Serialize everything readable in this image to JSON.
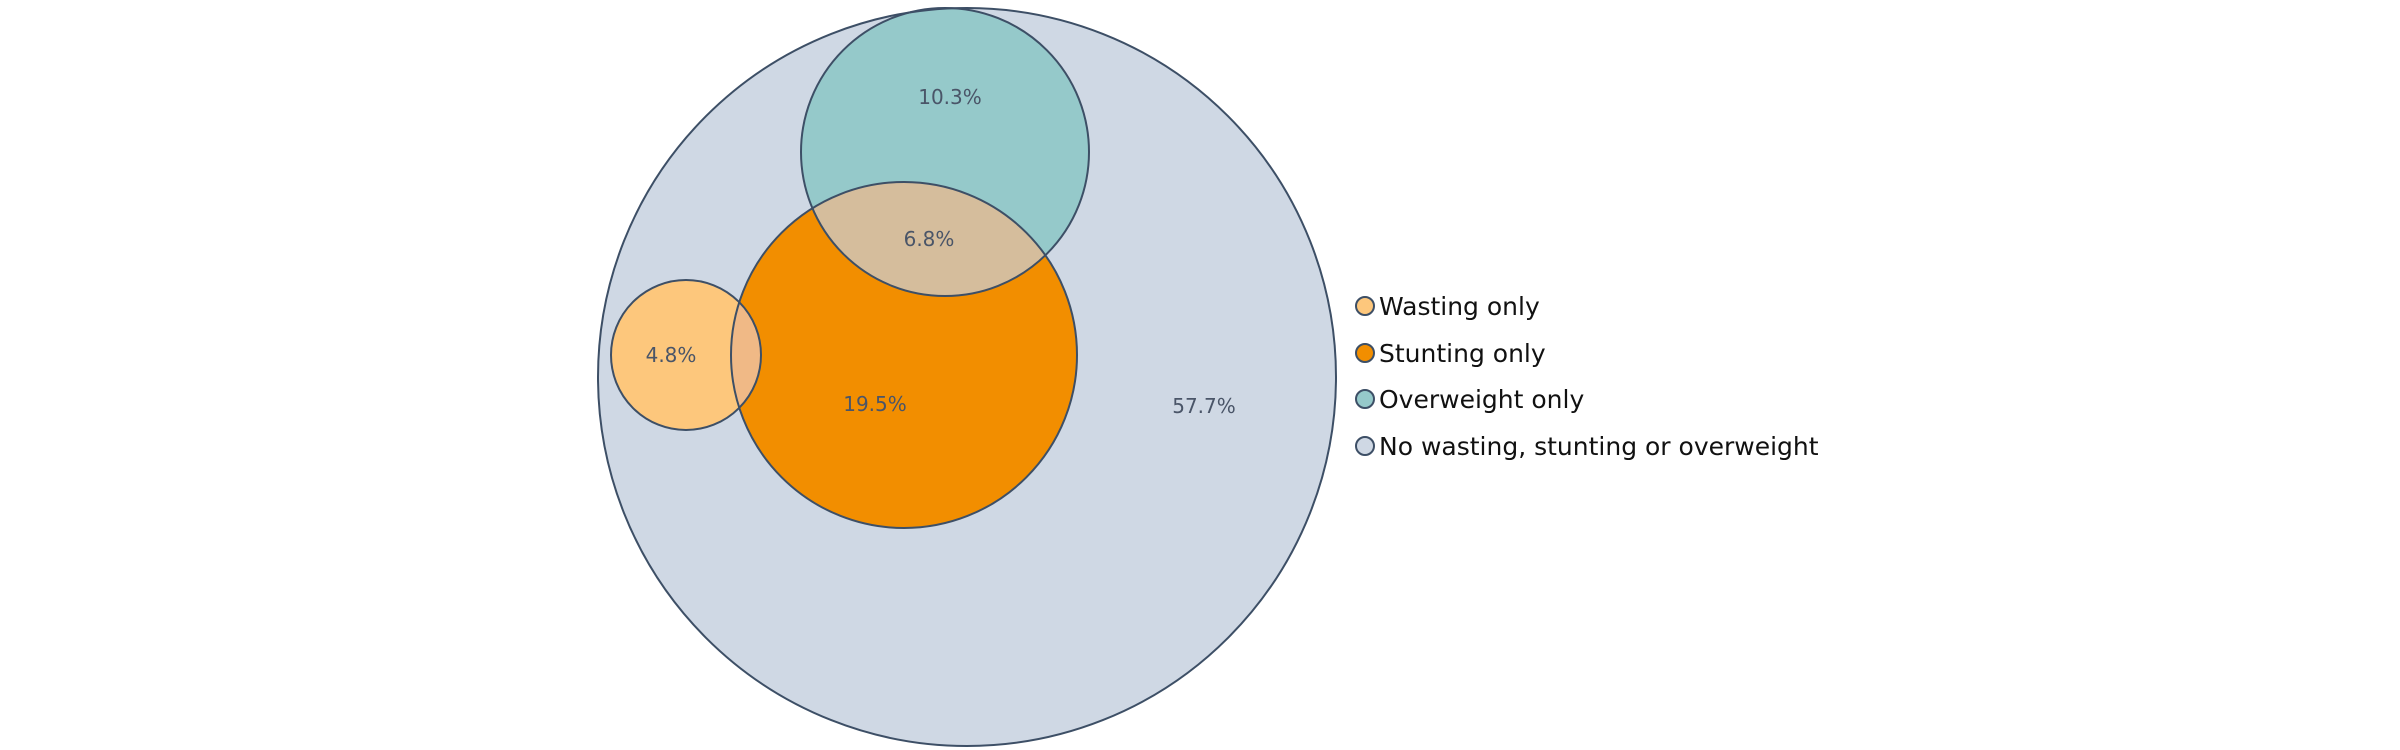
{
  "chart_data": {
    "type": "venn",
    "title": "",
    "sets": [
      {
        "name": "No wasting, stunting or overweight",
        "color": "#cfd8e4"
      },
      {
        "name": "Overweight only",
        "color": "#95c9ca"
      },
      {
        "name": "Stunting only",
        "color": "#f28e00"
      },
      {
        "name": "Wasting only",
        "color": "#fdc77c"
      }
    ],
    "overlap_colors": {
      "stunting_overweight": "#d5bd9c",
      "wasting_stunting": "#f0b986"
    },
    "regions": [
      {
        "key": "none",
        "label": "57.7%",
        "value": 57.7
      },
      {
        "key": "overweight",
        "label": "10.3%",
        "value": 10.3
      },
      {
        "key": "stunting_overweight",
        "label": "6.8%",
        "value": 6.8
      },
      {
        "key": "stunting",
        "label": "19.5%",
        "value": 19.5
      },
      {
        "key": "wasting",
        "label": "4.8%",
        "value": 4.8
      }
    ],
    "legend": {
      "position": "right",
      "items": [
        {
          "label": "Wasting only",
          "color": "#fdc77c"
        },
        {
          "label": "Stunting only",
          "color": "#f28e00"
        },
        {
          "label": "Overweight only",
          "color": "#95c9ca"
        },
        {
          "label": "No wasting, stunting or overweight",
          "color": "#cfd8e4"
        }
      ]
    }
  }
}
